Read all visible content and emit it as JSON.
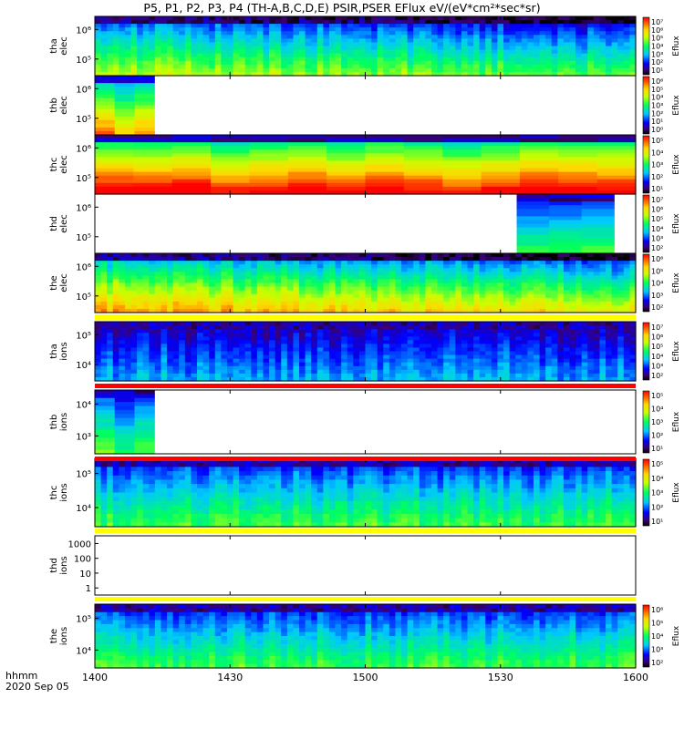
{
  "title": "P5, P1, P2, P3, P4 (TH-A,B,C,D,E) PSIR,PSER EFlux eV/(eV*cm²*sec*sr)",
  "x_axis": {
    "label_line1": "hhmm",
    "label_line2": "2020 Sep 05",
    "ticks": [
      "1400",
      "1430",
      "1500",
      "1530",
      "1600"
    ]
  },
  "colorbar_label": "Eflux",
  "chart_data": {
    "type": "heatmap",
    "title": "P5, P1, P2, P3, P4 (TH-A,B,C,D,E) PSIR,PSER EFlux eV/(eV*cm²*sec*sr)",
    "x_range": [
      "1400",
      "1600"
    ],
    "panels": [
      {
        "id": "tha-elec",
        "ylabel": [
          "tha",
          "elec"
        ],
        "yticks": [
          "10⁵",
          "10⁶"
        ],
        "cbar_ticks": [
          "10⁷",
          "10⁶",
          "10⁵",
          "10⁴",
          "10³",
          "10²",
          "10¹"
        ],
        "coverage": [
          0,
          1
        ],
        "fill": "full",
        "level": "mid-high"
      },
      {
        "id": "thb-elec",
        "ylabel": [
          "thb",
          "elec"
        ],
        "yticks": [
          "10⁵",
          "10⁶"
        ],
        "cbar_ticks": [
          "10⁶",
          "10⁵",
          "10⁴",
          "10³",
          "10²",
          "10¹",
          "10⁰"
        ],
        "coverage": [
          0,
          0.11
        ],
        "fill": "partial",
        "level": "high"
      },
      {
        "id": "thc-elec",
        "ylabel": [
          "thc",
          "elec"
        ],
        "yticks": [
          "10⁵",
          "10⁶"
        ],
        "cbar_ticks": [
          "10⁵",
          "10⁴",
          "10³",
          "10²",
          "10¹"
        ],
        "coverage": [
          0,
          1
        ],
        "fill": "full",
        "level": "very-high"
      },
      {
        "id": "thd-elec",
        "ylabel": [
          "thd",
          "elec"
        ],
        "yticks": [
          "10⁵",
          "10⁶"
        ],
        "cbar_ticks": [
          "10⁷",
          "10⁶",
          "10⁵",
          "10⁴",
          "10³",
          "10²"
        ],
        "coverage": [
          0.78,
          0.96
        ],
        "fill": "partial",
        "level": "mid"
      },
      {
        "id": "the-elec",
        "ylabel": [
          "the",
          "elec"
        ],
        "yticks": [
          "10⁵",
          "10⁶"
        ],
        "cbar_ticks": [
          "10⁶",
          "10⁵",
          "10⁴",
          "10³",
          "10²"
        ],
        "coverage": [
          0,
          1
        ],
        "fill": "full",
        "level": "high"
      },
      {
        "id": "tha-ions",
        "ylabel": [
          "tha",
          "ions"
        ],
        "yticks": [
          "10⁴",
          "10⁵"
        ],
        "cbar_ticks": [
          "10⁷",
          "10⁶",
          "10⁵",
          "10⁴",
          "10³",
          "10²"
        ],
        "coverage": [
          0,
          1
        ],
        "fill": "full",
        "level": "low"
      },
      {
        "id": "thb-ions",
        "ylabel": [
          "thb",
          "ions"
        ],
        "yticks": [
          "10³",
          "10⁴"
        ],
        "cbar_ticks": [
          "10⁵",
          "10⁴",
          "10³",
          "10²",
          "10¹"
        ],
        "coverage": [
          0,
          0.11
        ],
        "fill": "partial",
        "level": "mid"
      },
      {
        "id": "thc-ions",
        "ylabel": [
          "thc",
          "ions"
        ],
        "yticks": [
          "10⁴",
          "10⁵"
        ],
        "cbar_ticks": [
          "10⁵",
          "10⁴",
          "10³",
          "10²",
          "10¹"
        ],
        "coverage": [
          0,
          1
        ],
        "fill": "full",
        "level": "mid"
      },
      {
        "id": "thd-ions",
        "ylabel": [
          "thd",
          "ions"
        ],
        "yticks": [
          "1",
          "10",
          "100",
          "1000"
        ],
        "cbar_ticks": [],
        "coverage": [
          0,
          0
        ],
        "fill": "none",
        "level": "none"
      },
      {
        "id": "the-ions",
        "ylabel": [
          "the",
          "ions"
        ],
        "yticks": [
          "10⁴",
          "10⁵"
        ],
        "cbar_ticks": [
          "10⁶",
          "10⁵",
          "10⁴",
          "10³",
          "10²"
        ],
        "coverage": [
          0,
          1
        ],
        "fill": "full",
        "level": "mid"
      }
    ]
  }
}
